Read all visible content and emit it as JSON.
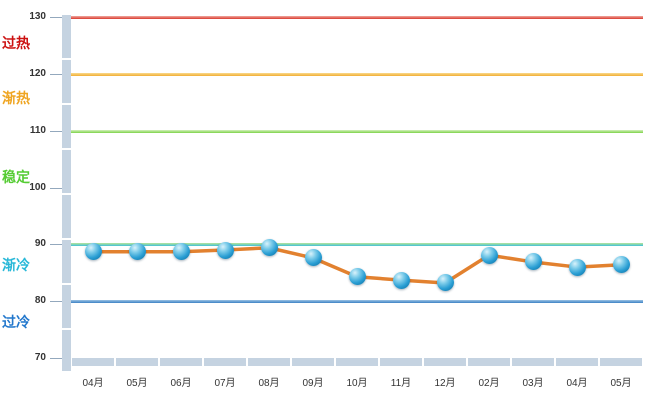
{
  "chart_data": {
    "type": "line",
    "categories": [
      "04月",
      "05月",
      "06月",
      "07月",
      "08月",
      "09月",
      "10月",
      "11月",
      "12月",
      "02月",
      "03月",
      "04月",
      "05月"
    ],
    "series": [
      {
        "values": [
          88.7,
          88.7,
          88.7,
          89.0,
          89.4,
          87.6,
          84.3,
          83.7,
          83.2,
          88.1,
          86.9,
          86.0,
          86.4
        ],
        "line_color": "#e2812f",
        "marker_color": "#2196cd"
      }
    ],
    "ylim": [
      70,
      130
    ],
    "yticks": [
      70,
      80,
      90,
      100,
      110,
      120,
      130
    ],
    "grid": false,
    "legend": "none",
    "axis_band_color": "#c5d3e1",
    "tick_label_color": "#333333",
    "trendlines": [
      {
        "value": 130,
        "colors": [
          "#f0a8a0",
          "#d93a2e"
        ]
      },
      {
        "value": 120,
        "colors": [
          "#f9d98d",
          "#f1ae34"
        ]
      },
      {
        "value": 110,
        "colors": [
          "#d5f0bf",
          "#7ed348"
        ]
      },
      {
        "value": 90,
        "colors": [
          "#b9e598",
          "#41c1d8"
        ]
      },
      {
        "value": 80,
        "colors": [
          "#9cc3e4",
          "#3d82c4"
        ]
      }
    ],
    "zone_labels": [
      {
        "text": "过热",
        "color": "#cc1111",
        "y": 125.4
      },
      {
        "text": "渐热",
        "color": "#efa522",
        "y": 115.7
      },
      {
        "text": "稳定",
        "color": "#55cc33",
        "y": 101.8
      },
      {
        "text": "渐冷",
        "color": "#29b8d8",
        "y": 86.4
      },
      {
        "text": "过冷",
        "color": "#2277cc",
        "y": 76.3
      }
    ]
  }
}
